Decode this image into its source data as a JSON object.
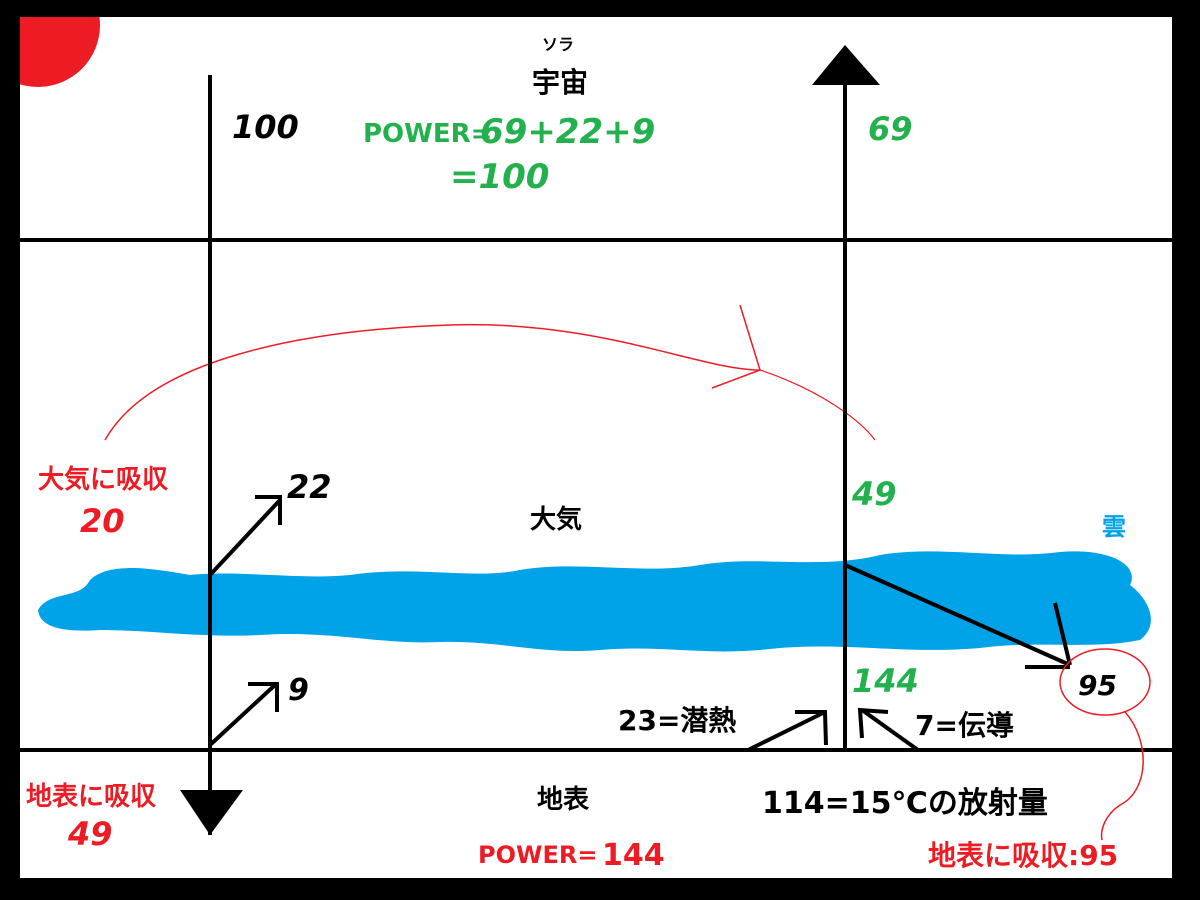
{
  "colors": {
    "sun": "#ed1c24",
    "cloud": "#00a2e8",
    "green": "#22b14c",
    "red": "#ed1c24",
    "black": "#000000"
  },
  "space": {
    "ruby": "ソラ",
    "label": "宇宙",
    "power_line1_prefix": "POWER=",
    "power_line1_value": "69+22+9",
    "power_line2": "=100"
  },
  "incoming": {
    "value": "100"
  },
  "outgoing_space": {
    "value": "69"
  },
  "atmosphere": {
    "label": "大気",
    "absorbed_label": "大気に吸収",
    "absorbed_value": "20",
    "reflect_22": "22",
    "reflect_9": "9",
    "emit_49": "49",
    "emit_144": "144"
  },
  "cloud": {
    "label": "雲",
    "back_radiation": "95"
  },
  "surface": {
    "label": "地表",
    "absorbed_label": "地表に吸収",
    "absorbed_value": "49",
    "power_prefix": "POWER=",
    "power_value": "144",
    "latent_heat": "23=潜熱",
    "conduction": "7=伝導",
    "radiation": "114=15℃の放射量",
    "absorbed_95": "地表に吸収:95"
  }
}
